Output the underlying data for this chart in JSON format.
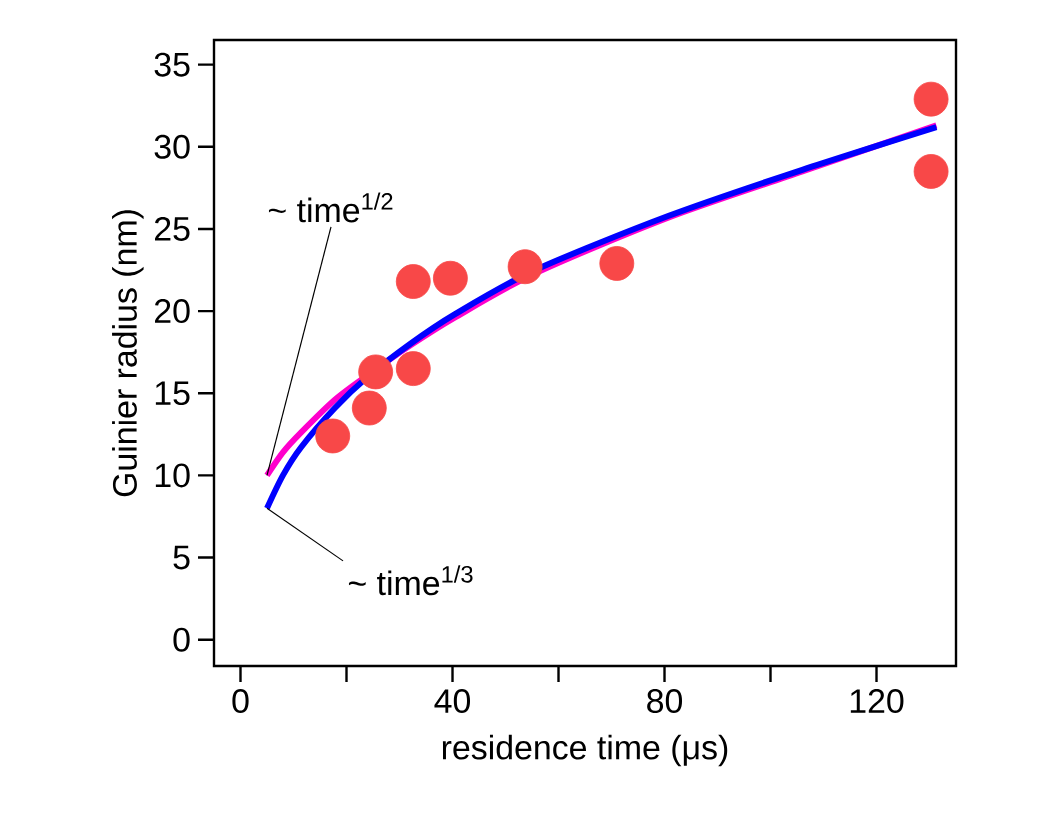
{
  "chart_data": {
    "type": "scatter",
    "xlabel": "residence time (μs)",
    "ylabel": "Guinier radius (nm)",
    "xlim": [
      -5,
      135
    ],
    "ylim": [
      -1.6,
      36.5
    ],
    "xticks": [
      0,
      {
        "value": 20,
        "label": null
      },
      40,
      {
        "value": 60,
        "label": null
      },
      80,
      {
        "value": 100,
        "label": null
      },
      120
    ],
    "yticks": [
      0,
      5,
      10,
      15,
      20,
      25,
      30,
      35
    ],
    "grid": false,
    "series": [
      {
        "type": "scatter",
        "marker": "circle",
        "color": "#f84848",
        "x": [
          17.4,
          24.3,
          25.5,
          32.6,
          32.6,
          39.6,
          53.7,
          71,
          130.3,
          130.3
        ],
        "values": [
          12.4,
          14.1,
          16.3,
          16.5,
          21.8,
          22.0,
          22.7,
          22.9,
          32.9,
          28.5
        ]
      },
      {
        "type": "line",
        "marker": "none",
        "line_style": "solid",
        "color": "#ff00cc",
        "x": [
          5,
          8,
          11.4,
          17.8,
          24,
          32,
          40.4,
          55.6,
          80.8,
          106,
          131.3
        ],
        "values": [
          10.0,
          11.4,
          12.6,
          14.6,
          16.1,
          17.9,
          19.6,
          22.3,
          25.7,
          28.5,
          31.3
        ]
      },
      {
        "type": "line",
        "marker": "none",
        "line_style": "solid",
        "color": "#0000ff",
        "x": [
          5,
          8,
          11.4,
          17.8,
          24,
          32,
          40.4,
          55.6,
          80.8,
          106,
          131.3
        ],
        "values": [
          8.0,
          10.0,
          11.7,
          14.1,
          16.0,
          18.0,
          19.8,
          22.5,
          25.8,
          28.6,
          31.2
        ]
      }
    ],
    "annotations": [
      {
        "text": "~ time$^{1/2}$",
        "x": 5,
        "y": 10.0
      },
      {
        "text": "~ time$^{1/3}$",
        "x": 5,
        "y": 8.0
      }
    ]
  }
}
